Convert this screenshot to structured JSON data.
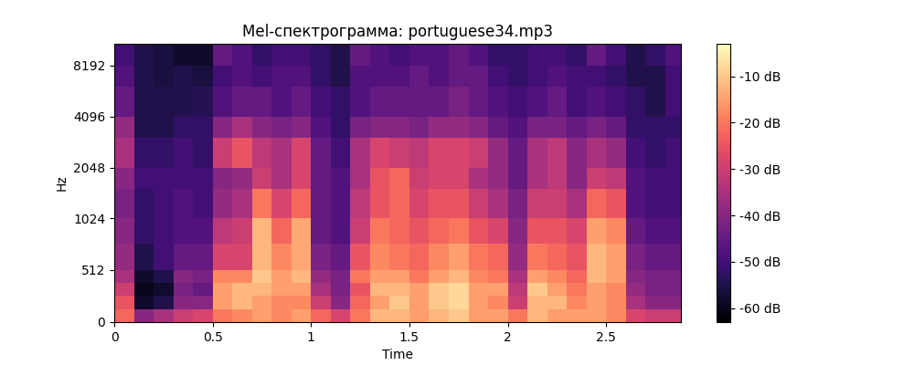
{
  "chart_data": {
    "type": "heatmap",
    "title": "Mel-спектрограмма: portuguese34.mp3",
    "x_label": "Time",
    "y_label": "Hz",
    "color": "magma",
    "log": "y",
    "xlim": [
      0,
      2.88
    ],
    "xticks": [
      0,
      0.5,
      1,
      1.5,
      2,
      2.5
    ],
    "ylim": [
      0,
      11025
    ],
    "yticks": [
      0,
      512,
      1024,
      2048,
      4096,
      8192
    ],
    "time_edges": [
      0,
      0.1,
      0.2,
      0.3,
      0.4,
      0.5,
      0.6,
      0.7,
      0.8,
      0.9,
      1.0,
      1.1,
      1.2,
      1.3,
      1.4,
      1.5,
      1.6,
      1.7,
      1.8,
      1.9,
      2.0,
      2.1,
      2.2,
      2.3,
      2.4,
      2.5,
      2.6,
      2.7,
      2.8,
      2.88
    ],
    "freq_edges": [
      0,
      128,
      256,
      384,
      512,
      768,
      1024,
      1536,
      2048,
      3072,
      4096,
      6144,
      8192,
      11025
    ],
    "cells": [
      [
        -22,
        -25,
        -30,
        -35,
        -38,
        -40,
        -42,
        -40,
        -35,
        -38,
        -45,
        -48,
        -50
      ],
      [
        -40,
        -58,
        -60,
        -58,
        -55,
        -52,
        -52,
        -50,
        -52,
        -55,
        -55,
        -55,
        -55
      ],
      [
        -35,
        -55,
        -58,
        -55,
        -50,
        -50,
        -50,
        -50,
        -52,
        -55,
        -55,
        -56,
        -56
      ],
      [
        -30,
        -40,
        -42,
        -40,
        -45,
        -48,
        -48,
        -50,
        -50,
        -52,
        -55,
        -55,
        -58
      ],
      [
        -28,
        -40,
        -45,
        -42,
        -45,
        -48,
        -50,
        -50,
        -52,
        -52,
        -54,
        -56,
        -58
      ],
      [
        -20,
        -15,
        -15,
        -18,
        -28,
        -32,
        -38,
        -40,
        -30,
        -40,
        -48,
        -50,
        -45
      ],
      [
        -18,
        -12,
        -12,
        -18,
        -28,
        -30,
        -35,
        -38,
        -25,
        -35,
        -45,
        -48,
        -48
      ],
      [
        -15,
        -15,
        -12,
        -10,
        -12,
        -12,
        -20,
        -30,
        -32,
        -40,
        -45,
        -50,
        -52
      ],
      [
        -18,
        -18,
        -15,
        -15,
        -18,
        -22,
        -28,
        -35,
        -35,
        -42,
        -48,
        -48,
        -50
      ],
      [
        -15,
        -18,
        -15,
        -12,
        -14,
        -14,
        -22,
        -28,
        -28,
        -40,
        -45,
        -48,
        -50
      ],
      [
        -22,
        -30,
        -35,
        -38,
        -42,
        -45,
        -45,
        -45,
        -45,
        -48,
        -50,
        -52,
        -52
      ],
      [
        -28,
        -40,
        -42,
        -42,
        -45,
        -48,
        -48,
        -48,
        -50,
        -52,
        -52,
        -55,
        -55
      ],
      [
        -20,
        -22,
        -25,
        -20,
        -25,
        -30,
        -32,
        -35,
        -35,
        -42,
        -48,
        -48,
        -45
      ],
      [
        -12,
        -15,
        -12,
        -15,
        -18,
        -20,
        -25,
        -25,
        -28,
        -40,
        -45,
        -48,
        -48
      ],
      [
        -12,
        -10,
        -12,
        -15,
        -20,
        -22,
        -22,
        -22,
        -30,
        -40,
        -45,
        -48,
        -50
      ],
      [
        -15,
        -15,
        -15,
        -20,
        -22,
        -25,
        -28,
        -30,
        -32,
        -42,
        -45,
        -45,
        -48
      ],
      [
        -12,
        -10,
        -10,
        -15,
        -18,
        -22,
        -25,
        -28,
        -28,
        -38,
        -45,
        -48,
        -48
      ],
      [
        -10,
        -8,
        -8,
        -12,
        -15,
        -20,
        -25,
        -28,
        -28,
        -38,
        -42,
        -45,
        -45
      ],
      [
        -15,
        -15,
        -15,
        -18,
        -20,
        -25,
        -30,
        -35,
        -30,
        -40,
        -45,
        -45,
        -48
      ],
      [
        -15,
        -18,
        -15,
        -20,
        -22,
        -28,
        -35,
        -38,
        -38,
        -45,
        -48,
        -50,
        -52
      ],
      [
        -20,
        -30,
        -32,
        -35,
        -38,
        -40,
        -42,
        -45,
        -45,
        -48,
        -50,
        -52,
        -52
      ],
      [
        -12,
        -12,
        -10,
        -15,
        -20,
        -25,
        -30,
        -35,
        -35,
        -42,
        -48,
        -50,
        -50
      ],
      [
        -15,
        -12,
        -15,
        -18,
        -22,
        -25,
        -30,
        -32,
        -32,
        -42,
        -45,
        -48,
        -50
      ],
      [
        -15,
        -18,
        -20,
        -22,
        -25,
        -28,
        -35,
        -40,
        -40,
        -45,
        -50,
        -50,
        -52
      ],
      [
        -15,
        -15,
        -15,
        -12,
        -12,
        -15,
        -22,
        -30,
        -35,
        -42,
        -48,
        -50,
        -45
      ],
      [
        -18,
        -18,
        -18,
        -15,
        -15,
        -18,
        -25,
        -32,
        -38,
        -45,
        -50,
        -52,
        -50
      ],
      [
        -28,
        -35,
        -38,
        -40,
        -42,
        -45,
        -48,
        -48,
        -50,
        -52,
        -52,
        -55,
        -55
      ],
      [
        -30,
        -40,
        -42,
        -42,
        -45,
        -48,
        -50,
        -50,
        -52,
        -52,
        -55,
        -55,
        -52
      ],
      [
        -30,
        -40,
        -42,
        -42,
        -45,
        -48,
        -50,
        -50,
        -50,
        -52,
        -50,
        -50,
        -48
      ]
    ],
    "colorbar_range": [
      -63,
      -3
    ],
    "colorbar_ticks": [
      {
        "value": -10,
        "label": "-10 dB"
      },
      {
        "value": -20,
        "label": "-20 dB"
      },
      {
        "value": -30,
        "label": "-30 dB"
      },
      {
        "value": -40,
        "label": "-40 dB"
      },
      {
        "value": -50,
        "label": "-50 dB"
      },
      {
        "value": -60,
        "label": "-60 dB"
      }
    ]
  }
}
